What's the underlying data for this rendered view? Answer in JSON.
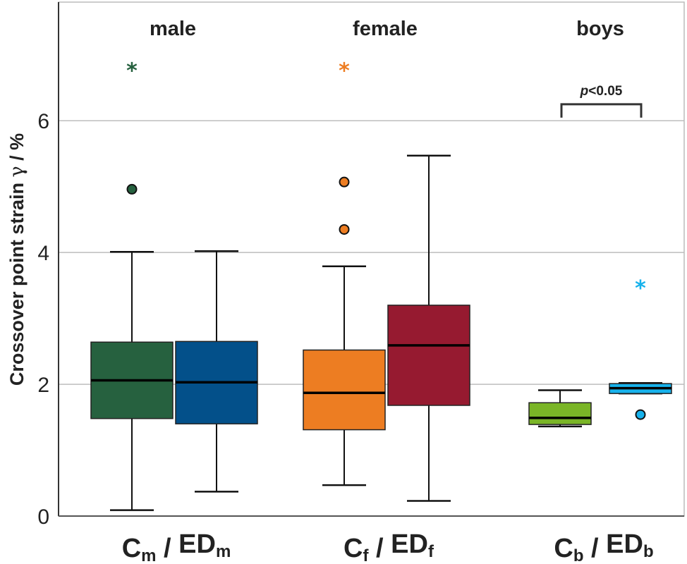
{
  "chart_data": {
    "type": "box",
    "title": "",
    "ylabel": "Crossover point strain γ / %",
    "ylabel_prefix": "Crossover point strain ",
    "ylabel_symbol": "γ",
    "ylabel_suffix": " / %",
    "ylim": [
      0,
      7.8
    ],
    "yticks": [
      0,
      2,
      4,
      6
    ],
    "ytick_labels": [
      "0",
      "2",
      "4",
      "6"
    ],
    "grid": "horizontal",
    "groups": [
      {
        "label": "male",
        "xlabel": {
          "a": "C",
          "a_sub": "m",
          "sep": " / ",
          "b": "ED",
          "b_sub": "m"
        }
      },
      {
        "label": "female",
        "xlabel": {
          "a": "C",
          "a_sub": "f",
          "sep": " / ",
          "b": "ED",
          "b_sub": "f"
        }
      },
      {
        "label": "boys",
        "xlabel": {
          "a": "C",
          "a_sub": "b",
          "sep": " / ",
          "b": "ED",
          "b_sub": "b"
        }
      }
    ],
    "series": [
      {
        "name": "Cm",
        "group": 0,
        "slot": 0,
        "color": "#26613f",
        "whisker_low": 0.09,
        "q1": 1.48,
        "median": 2.06,
        "q3": 2.64,
        "whisker_high": 4.01,
        "outliers": [
          4.96
        ],
        "stars": [
          6.8
        ]
      },
      {
        "name": "EDm",
        "group": 0,
        "slot": 1,
        "color": "#03508a",
        "whisker_low": 0.37,
        "q1": 1.4,
        "median": 2.03,
        "q3": 2.65,
        "whisker_high": 4.02,
        "outliers": [],
        "stars": []
      },
      {
        "name": "Cf",
        "group": 1,
        "slot": 0,
        "color": "#ed7d22",
        "whisker_low": 0.47,
        "q1": 1.31,
        "median": 1.87,
        "q3": 2.52,
        "whisker_high": 3.79,
        "outliers": [
          5.07,
          4.35
        ],
        "stars": [
          6.8
        ]
      },
      {
        "name": "EDf",
        "group": 1,
        "slot": 1,
        "color": "#961a30",
        "whisker_low": 0.23,
        "q1": 1.68,
        "median": 2.59,
        "q3": 3.2,
        "whisker_high": 5.47,
        "outliers": [],
        "stars": []
      },
      {
        "name": "Cb",
        "group": 2,
        "slot": 0,
        "color": "#7ab527",
        "whisker_low": 1.36,
        "q1": 1.39,
        "median": 1.49,
        "q3": 1.72,
        "whisker_high": 1.91,
        "outliers": [],
        "stars": []
      },
      {
        "name": "EDb",
        "group": 2,
        "slot": 1,
        "color": "#17b2ec",
        "whisker_low": 1.86,
        "q1": 1.86,
        "median": 1.94,
        "q3": 2.01,
        "whisker_high": 2.02,
        "outliers": [
          1.54
        ],
        "stars": [
          3.5
        ]
      }
    ],
    "annotations": [
      {
        "type": "significance-bracket",
        "group": 2,
        "text_italic": "p",
        "text": "<0.05",
        "y": 6.25
      }
    ]
  }
}
